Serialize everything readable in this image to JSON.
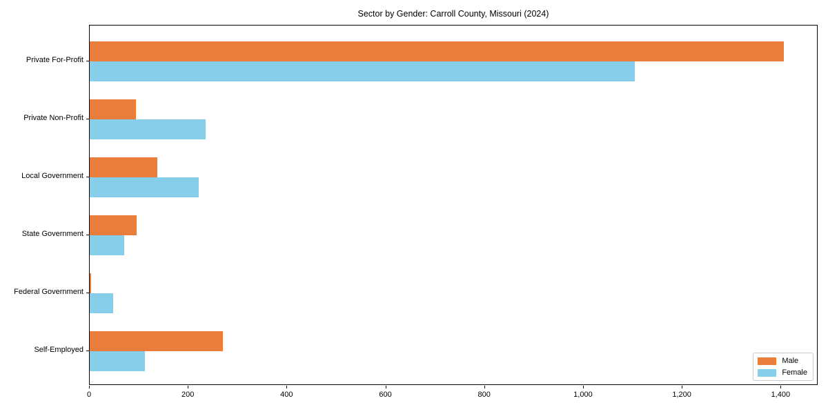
{
  "chart_data": {
    "type": "bar",
    "orientation": "horizontal",
    "title": "Sector by Gender: Carroll County, Missouri (2024)",
    "categories": [
      "Private For-Profit",
      "Private Non-Profit",
      "Local Government",
      "State Government",
      "Federal Government",
      "Self-Employed"
    ],
    "series": [
      {
        "name": "Male",
        "color": "#e87d3c",
        "values": [
          1405,
          94,
          137,
          95,
          3,
          269
        ]
      },
      {
        "name": "Female",
        "color": "#87ceeb",
        "values": [
          1103,
          234,
          220,
          70,
          47,
          112
        ]
      }
    ],
    "xlabel": "",
    "ylabel": "",
    "xlim": [
      0,
      1475
    ],
    "xticks": [
      {
        "value": 0,
        "label": "0"
      },
      {
        "value": 200,
        "label": "200"
      },
      {
        "value": 400,
        "label": "400"
      },
      {
        "value": 600,
        "label": "600"
      },
      {
        "value": 800,
        "label": "800"
      },
      {
        "value": 1000,
        "label": "1,000"
      },
      {
        "value": 1200,
        "label": "1,200"
      },
      {
        "value": 1400,
        "label": "1,400"
      }
    ],
    "grid": false,
    "legend": {
      "position": "lower right",
      "entries": [
        "Male",
        "Female"
      ]
    }
  }
}
